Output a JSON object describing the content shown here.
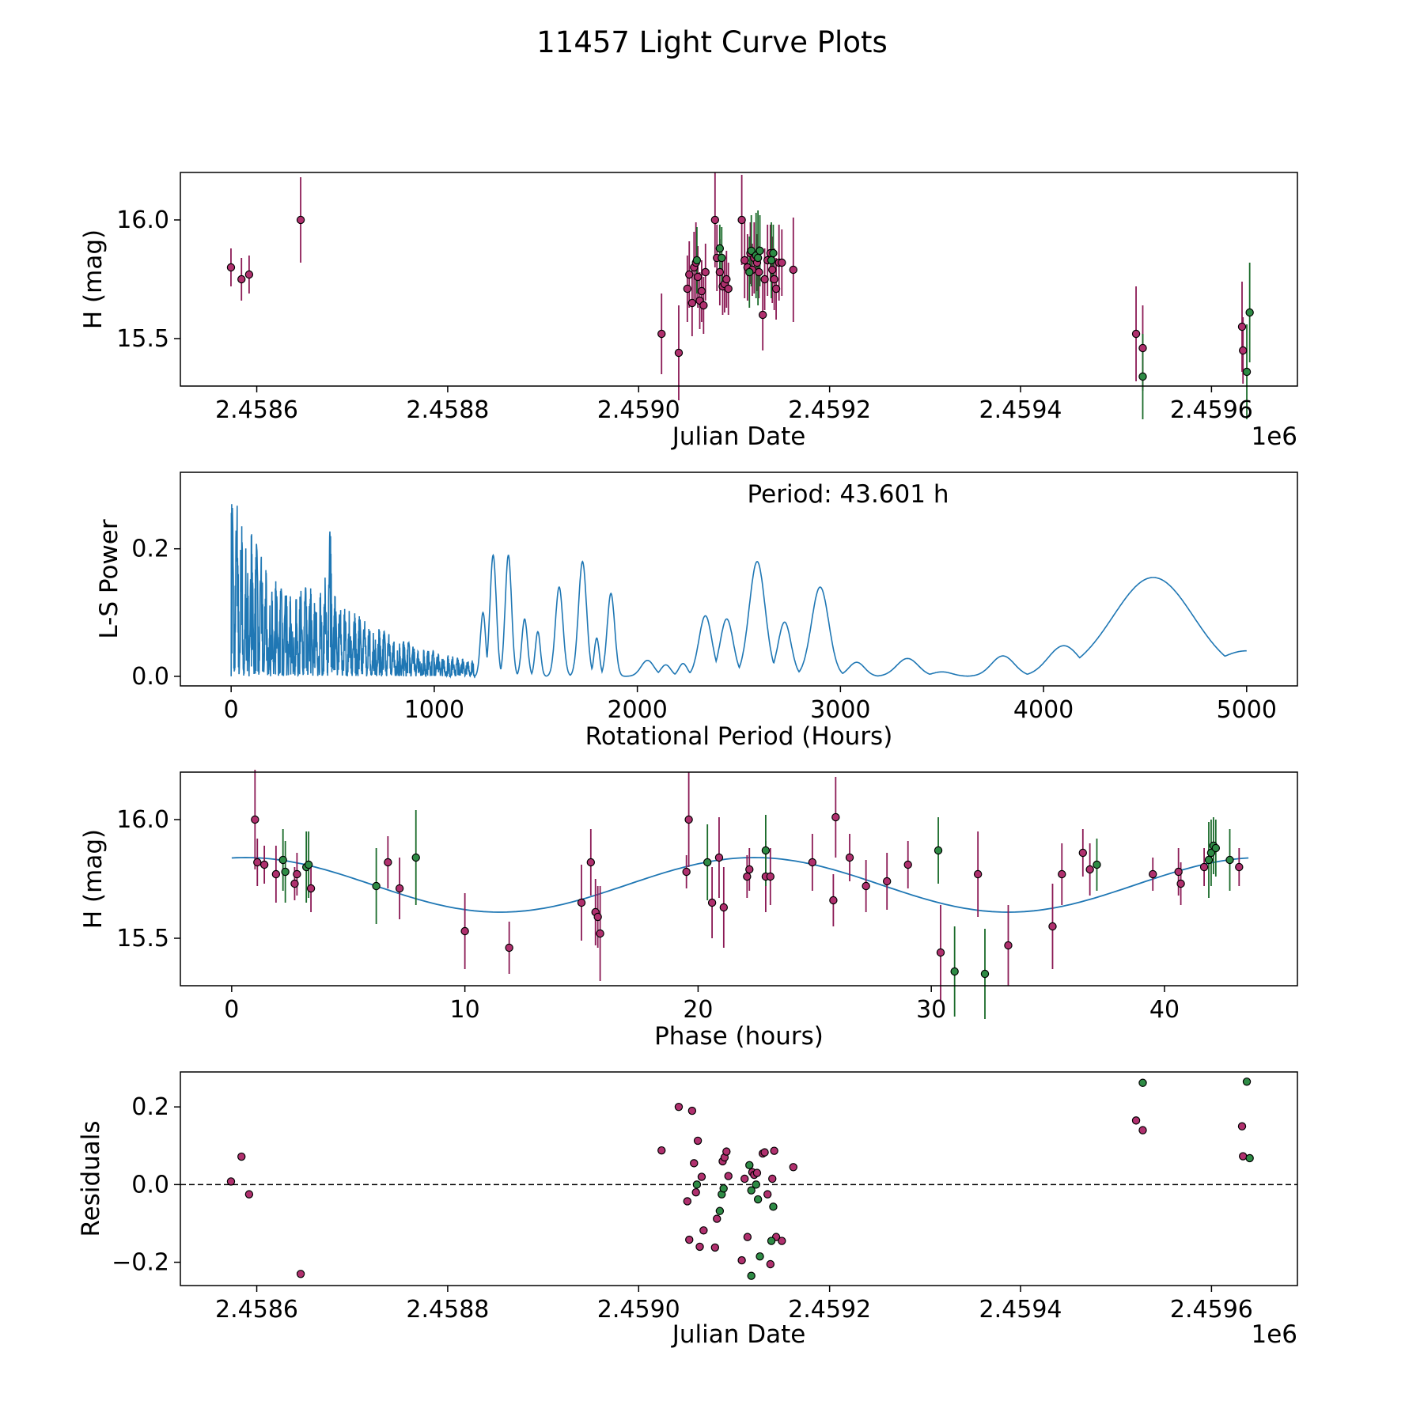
{
  "page_title": "11457 Light Curve Plots",
  "colors": {
    "ztf_r": "#8b1a55",
    "ztf_g": "#1a6b2a",
    "ztf_r_fill": "#b0306e",
    "ztf_g_fill": "#2e8b45",
    "line": "#1f77b4",
    "axes": "#000000"
  },
  "chart_data": [
    {
      "id": "lightcurve",
      "type": "scatter",
      "title": "",
      "xlabel": "Julian Date",
      "ylabel": "H (mag)",
      "x_offset_label": "1e6",
      "xlim": [
        2.45852,
        2.45969
      ],
      "ylim": [
        15.3,
        16.2
      ],
      "y_inverted": false,
      "xticks": [
        2.4586,
        2.4588,
        2.459,
        2.4592,
        2.4594,
        2.4596
      ],
      "xtick_labels": [
        "2.4586",
        "2.4588",
        "2.4590",
        "2.4592",
        "2.4594",
        "2.4596"
      ],
      "yticks": [
        15.5,
        16.0
      ],
      "ytick_labels": [
        "15.5",
        "16.0"
      ],
      "series": [
        {
          "name": "r-band",
          "points": [
            [
              2.458573,
              15.8,
              0.08
            ],
            [
              2.458584,
              15.75,
              0.09
            ],
            [
              2.458592,
              15.77,
              0.08
            ],
            [
              2.458646,
              16.0,
              0.18
            ],
            [
              2.459024,
              15.52,
              0.17
            ],
            [
              2.459042,
              15.44,
              0.2
            ],
            [
              2.459051,
              15.71,
              0.14
            ],
            [
              2.459053,
              15.77,
              0.14
            ],
            [
              2.459056,
              15.65,
              0.14
            ],
            [
              2.459058,
              15.8,
              0.15
            ],
            [
              2.45906,
              15.82,
              0.17
            ],
            [
              2.459062,
              15.76,
              0.13
            ],
            [
              2.459064,
              15.66,
              0.12
            ],
            [
              2.459066,
              15.7,
              0.13
            ],
            [
              2.459068,
              15.64,
              0.12
            ],
            [
              2.45907,
              15.78,
              0.12
            ],
            [
              2.45908,
              16.0,
              0.2
            ],
            [
              2.459082,
              15.84,
              0.14
            ],
            [
              2.459085,
              15.78,
              0.14
            ],
            [
              2.459088,
              15.72,
              0.12
            ],
            [
              2.45909,
              15.73,
              0.12
            ],
            [
              2.459092,
              15.75,
              0.12
            ],
            [
              2.459094,
              15.71,
              0.11
            ],
            [
              2.459108,
              16.0,
              0.19
            ],
            [
              2.459111,
              15.83,
              0.16
            ],
            [
              2.459114,
              15.8,
              0.14
            ],
            [
              2.459117,
              15.86,
              0.13
            ],
            [
              2.459119,
              15.79,
              0.11
            ],
            [
              2.459121,
              15.84,
              0.15
            ],
            [
              2.459124,
              15.82,
              0.12
            ],
            [
              2.459126,
              15.78,
              0.11
            ],
            [
              2.45913,
              15.6,
              0.15
            ],
            [
              2.459132,
              15.75,
              0.13
            ],
            [
              2.459135,
              15.83,
              0.15
            ],
            [
              2.459138,
              15.86,
              0.12
            ],
            [
              2.45914,
              15.79,
              0.14
            ],
            [
              2.459142,
              15.75,
              0.13
            ],
            [
              2.459144,
              15.71,
              0.13
            ],
            [
              2.459147,
              15.82,
              0.16
            ],
            [
              2.45915,
              15.82,
              0.14
            ],
            [
              2.459162,
              15.79,
              0.22
            ],
            [
              2.459521,
              15.52,
              0.2
            ],
            [
              2.459528,
              15.46,
              0.18
            ],
            [
              2.459632,
              15.55,
              0.19
            ],
            [
              2.459633,
              15.45,
              0.14
            ]
          ]
        },
        {
          "name": "g-band",
          "points": [
            [
              2.459061,
              15.83,
              0.14
            ],
            [
              2.459085,
              15.88,
              0.1
            ],
            [
              2.459087,
              15.84,
              0.13
            ],
            [
              2.459116,
              15.78,
              0.15
            ],
            [
              2.459118,
              15.87,
              0.15
            ],
            [
              2.459123,
              15.85,
              0.18
            ],
            [
              2.459125,
              15.84,
              0.2
            ],
            [
              2.459127,
              15.87,
              0.15
            ],
            [
              2.459139,
              15.83,
              0.16
            ],
            [
              2.459141,
              15.86,
              0.12
            ],
            [
              2.459528,
              15.34,
              0.18
            ],
            [
              2.459637,
              15.36,
              0.2
            ],
            [
              2.45964,
              15.61,
              0.21
            ]
          ]
        }
      ]
    },
    {
      "id": "periodogram",
      "type": "line",
      "title": "",
      "xlabel": "Rotational Period (Hours)",
      "ylabel": "L-S Power",
      "annotation": "Period: 43.601 h",
      "xlim": [
        -250,
        5250
      ],
      "ylim": [
        -0.015,
        0.32
      ],
      "xticks": [
        0,
        1000,
        2000,
        3000,
        4000,
        5000
      ],
      "xtick_labels": [
        "0",
        "1000",
        "2000",
        "3000",
        "4000",
        "5000"
      ],
      "yticks": [
        0.0,
        0.2
      ],
      "ytick_labels": [
        "0.0",
        "0.2"
      ],
      "peaks": [
        [
          1240,
          0.1,
          18
        ],
        [
          1290,
          0.19,
          22
        ],
        [
          1365,
          0.19,
          22
        ],
        [
          1445,
          0.09,
          20
        ],
        [
          1510,
          0.07,
          18
        ],
        [
          1615,
          0.14,
          26
        ],
        [
          1730,
          0.18,
          28
        ],
        [
          1800,
          0.06,
          18
        ],
        [
          1870,
          0.13,
          26
        ],
        [
          2050,
          0.025,
          45
        ],
        [
          2140,
          0.018,
          35
        ],
        [
          2225,
          0.02,
          30
        ],
        [
          2335,
          0.095,
          45
        ],
        [
          2440,
          0.09,
          45
        ],
        [
          2590,
          0.18,
          55
        ],
        [
          2725,
          0.085,
          45
        ],
        [
          2900,
          0.14,
          60
        ],
        [
          3080,
          0.022,
          55
        ],
        [
          3330,
          0.028,
          75
        ],
        [
          3500,
          0.007,
          70
        ],
        [
          3800,
          0.032,
          80
        ],
        [
          4100,
          0.048,
          110
        ],
        [
          4540,
          0.155,
          280
        ],
        [
          5000,
          0.04,
          220
        ]
      ]
    },
    {
      "id": "phased",
      "type": "scatter",
      "title": "",
      "xlabel": "Phase (hours)",
      "ylabel": "H (mag)",
      "xlim": [
        -2.2,
        45.7
      ],
      "ylim": [
        15.3,
        16.2
      ],
      "xticks": [
        0,
        10,
        20,
        30,
        40
      ],
      "xtick_labels": [
        "0",
        "10",
        "20",
        "30",
        "40"
      ],
      "yticks": [
        15.5,
        16.0
      ],
      "ytick_labels": [
        "15.5",
        "16.0"
      ],
      "model": {
        "period_h": 43.601,
        "mean": 15.725,
        "amplitude": 0.115,
        "peak_phase": 0.6
      },
      "series": [
        {
          "name": "r-band",
          "points": [
            [
              1.0,
              16.0,
              0.21
            ],
            [
              1.1,
              15.82,
              0.1
            ],
            [
              1.4,
              15.81,
              0.08
            ],
            [
              1.9,
              15.77,
              0.12
            ],
            [
              2.7,
              15.73,
              0.07
            ],
            [
              2.8,
              15.77,
              0.09
            ],
            [
              3.4,
              15.71,
              0.1
            ],
            [
              6.7,
              15.82,
              0.11
            ],
            [
              7.2,
              15.71,
              0.13
            ],
            [
              10.0,
              15.53,
              0.16
            ],
            [
              11.9,
              15.46,
              0.11
            ],
            [
              15.0,
              15.65,
              0.16
            ],
            [
              15.4,
              15.82,
              0.14
            ],
            [
              15.6,
              15.61,
              0.14
            ],
            [
              15.7,
              15.59,
              0.13
            ],
            [
              15.8,
              15.52,
              0.2
            ],
            [
              19.5,
              15.78,
              0.07
            ],
            [
              19.6,
              16.0,
              0.2
            ],
            [
              20.6,
              15.65,
              0.15
            ],
            [
              20.9,
              15.84,
              0.17
            ],
            [
              21.1,
              15.63,
              0.17
            ],
            [
              22.1,
              15.76,
              0.09
            ],
            [
              22.2,
              15.79,
              0.09
            ],
            [
              22.9,
              15.76,
              0.15
            ],
            [
              23.1,
              15.76,
              0.12
            ],
            [
              24.9,
              15.82,
              0.12
            ],
            [
              25.8,
              15.66,
              0.11
            ],
            [
              25.9,
              16.01,
              0.17
            ],
            [
              26.5,
              15.84,
              0.1
            ],
            [
              27.2,
              15.72,
              0.11
            ],
            [
              28.1,
              15.74,
              0.12
            ],
            [
              29.0,
              15.81,
              0.1
            ],
            [
              30.4,
              15.44,
              0.2
            ],
            [
              32.0,
              15.77,
              0.18
            ],
            [
              33.3,
              15.47,
              0.17
            ],
            [
              35.2,
              15.55,
              0.18
            ],
            [
              35.6,
              15.77,
              0.13
            ],
            [
              36.5,
              15.86,
              0.1
            ],
            [
              36.8,
              15.79,
              0.11
            ],
            [
              39.5,
              15.77,
              0.07
            ],
            [
              40.6,
              15.78,
              0.1
            ],
            [
              40.7,
              15.73,
              0.09
            ],
            [
              41.7,
              15.8,
              0.08
            ],
            [
              43.2,
              15.8,
              0.08
            ]
          ]
        },
        {
          "name": "g-band",
          "points": [
            [
              2.2,
              15.83,
              0.13
            ],
            [
              2.3,
              15.78,
              0.13
            ],
            [
              3.2,
              15.8,
              0.15
            ],
            [
              3.3,
              15.81,
              0.14
            ],
            [
              6.2,
              15.72,
              0.16
            ],
            [
              7.9,
              15.84,
              0.2
            ],
            [
              20.4,
              15.82,
              0.16
            ],
            [
              22.9,
              15.87,
              0.15
            ],
            [
              30.3,
              15.87,
              0.14
            ],
            [
              31.0,
              15.36,
              0.19
            ],
            [
              32.3,
              15.35,
              0.19
            ],
            [
              37.1,
              15.81,
              0.11
            ],
            [
              41.9,
              15.83,
              0.16
            ],
            [
              42.0,
              15.86,
              0.14
            ],
            [
              42.1,
              15.89,
              0.12
            ],
            [
              42.2,
              15.88,
              0.12
            ],
            [
              42.8,
              15.83,
              0.13
            ]
          ]
        }
      ]
    },
    {
      "id": "residuals",
      "type": "scatter",
      "title": "",
      "xlabel": "Julian Date",
      "ylabel": "Residuals",
      "x_offset_label": "1e6",
      "xlim": [
        2.45852,
        2.45969
      ],
      "ylim": [
        -0.26,
        0.29
      ],
      "zero_line": true,
      "xticks": [
        2.4586,
        2.4588,
        2.459,
        2.4592,
        2.4594,
        2.4596
      ],
      "xtick_labels": [
        "2.4586",
        "2.4588",
        "2.4590",
        "2.4592",
        "2.4594",
        "2.4596"
      ],
      "yticks": [
        -0.2,
        0.0,
        0.2
      ],
      "ytick_labels": [
        "−0.2",
        "0.0",
        "0.2"
      ],
      "series": [
        {
          "name": "r-band",
          "points": [
            [
              2.458573,
              0.008
            ],
            [
              2.458584,
              0.072
            ],
            [
              2.458592,
              -0.025
            ],
            [
              2.458646,
              -0.23
            ],
            [
              2.459024,
              0.088
            ],
            [
              2.459042,
              0.2
            ],
            [
              2.459051,
              -0.043
            ],
            [
              2.459053,
              -0.142
            ],
            [
              2.459056,
              0.19
            ],
            [
              2.459058,
              0.055
            ],
            [
              2.45906,
              -0.02
            ],
            [
              2.459062,
              0.113
            ],
            [
              2.459064,
              -0.16
            ],
            [
              2.459066,
              0.02
            ],
            [
              2.459068,
              -0.118
            ],
            [
              2.45908,
              -0.162
            ],
            [
              2.459082,
              -0.088
            ],
            [
              2.459088,
              0.06
            ],
            [
              2.45909,
              0.07
            ],
            [
              2.459092,
              0.085
            ],
            [
              2.459094,
              0.022
            ],
            [
              2.459108,
              -0.195
            ],
            [
              2.459111,
              0.015
            ],
            [
              2.459114,
              -0.135
            ],
            [
              2.459119,
              0.032
            ],
            [
              2.459121,
              0.025
            ],
            [
              2.459124,
              0.03
            ],
            [
              2.45913,
              0.08
            ],
            [
              2.459132,
              0.083
            ],
            [
              2.459135,
              -0.025
            ],
            [
              2.459138,
              -0.205
            ],
            [
              2.45914,
              0.015
            ],
            [
              2.459142,
              0.087
            ],
            [
              2.459144,
              -0.135
            ],
            [
              2.45915,
              -0.145
            ],
            [
              2.459162,
              0.045
            ],
            [
              2.459521,
              0.165
            ],
            [
              2.459528,
              0.14
            ],
            [
              2.459632,
              0.15
            ],
            [
              2.459633,
              0.073
            ]
          ]
        },
        {
          "name": "g-band",
          "points": [
            [
              2.459061,
              0.0
            ],
            [
              2.459085,
              -0.068
            ],
            [
              2.459087,
              -0.025
            ],
            [
              2.459089,
              -0.01
            ],
            [
              2.459116,
              0.05
            ],
            [
              2.459118,
              -0.015
            ],
            [
              2.459123,
              0.0
            ],
            [
              2.459125,
              -0.038
            ],
            [
              2.459127,
              -0.185
            ],
            [
              2.459139,
              -0.145
            ],
            [
              2.459141,
              -0.057
            ],
            [
              2.459118,
              -0.235
            ],
            [
              2.459528,
              0.262
            ],
            [
              2.459637,
              0.265
            ],
            [
              2.45964,
              0.068
            ]
          ]
        }
      ]
    }
  ]
}
